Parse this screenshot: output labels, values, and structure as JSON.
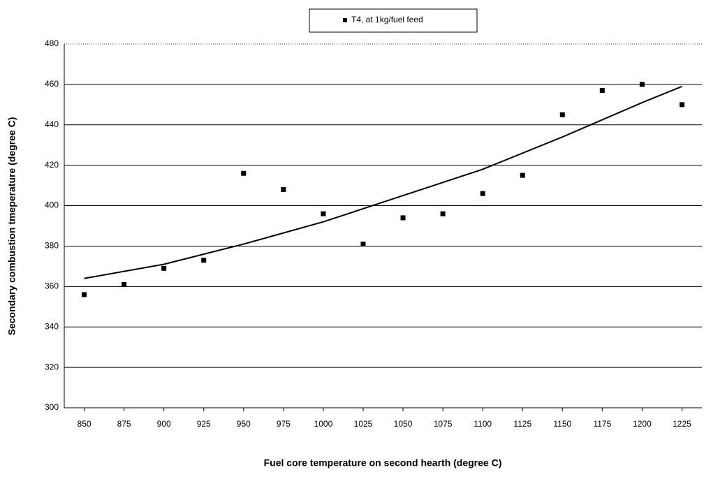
{
  "chart_data": {
    "type": "scatter",
    "legend_label": "T4, at 1kg/fuel feed",
    "x_label": "Fuel core temperature on second hearth (degree C)",
    "y_label": "Secondary combustion tmeperature (degree C)",
    "x": [
      850,
      875,
      900,
      925,
      950,
      975,
      1000,
      1025,
      1050,
      1075,
      1100,
      1125,
      1150,
      1175,
      1200,
      1225
    ],
    "values": [
      356,
      361,
      369,
      373,
      416,
      408,
      396,
      381,
      394,
      396,
      406,
      415,
      445,
      457,
      460,
      450
    ],
    "color": "#000000",
    "trendline": {
      "x": [
        850,
        900,
        950,
        1000,
        1050,
        1100,
        1150,
        1200,
        1225
      ],
      "values": [
        364,
        371,
        381,
        392,
        405,
        418,
        434,
        451,
        459
      ]
    },
    "xlim": [
      837.5,
      1237.5
    ],
    "xticks": [
      850,
      875,
      900,
      925,
      950,
      975,
      1000,
      1025,
      1050,
      1075,
      1100,
      1125,
      1150,
      1175,
      1200,
      1225
    ],
    "ylim": [
      300,
      480
    ],
    "yticks": [
      300,
      320,
      340,
      360,
      380,
      400,
      420,
      440,
      460,
      480
    ],
    "grid": true
  }
}
